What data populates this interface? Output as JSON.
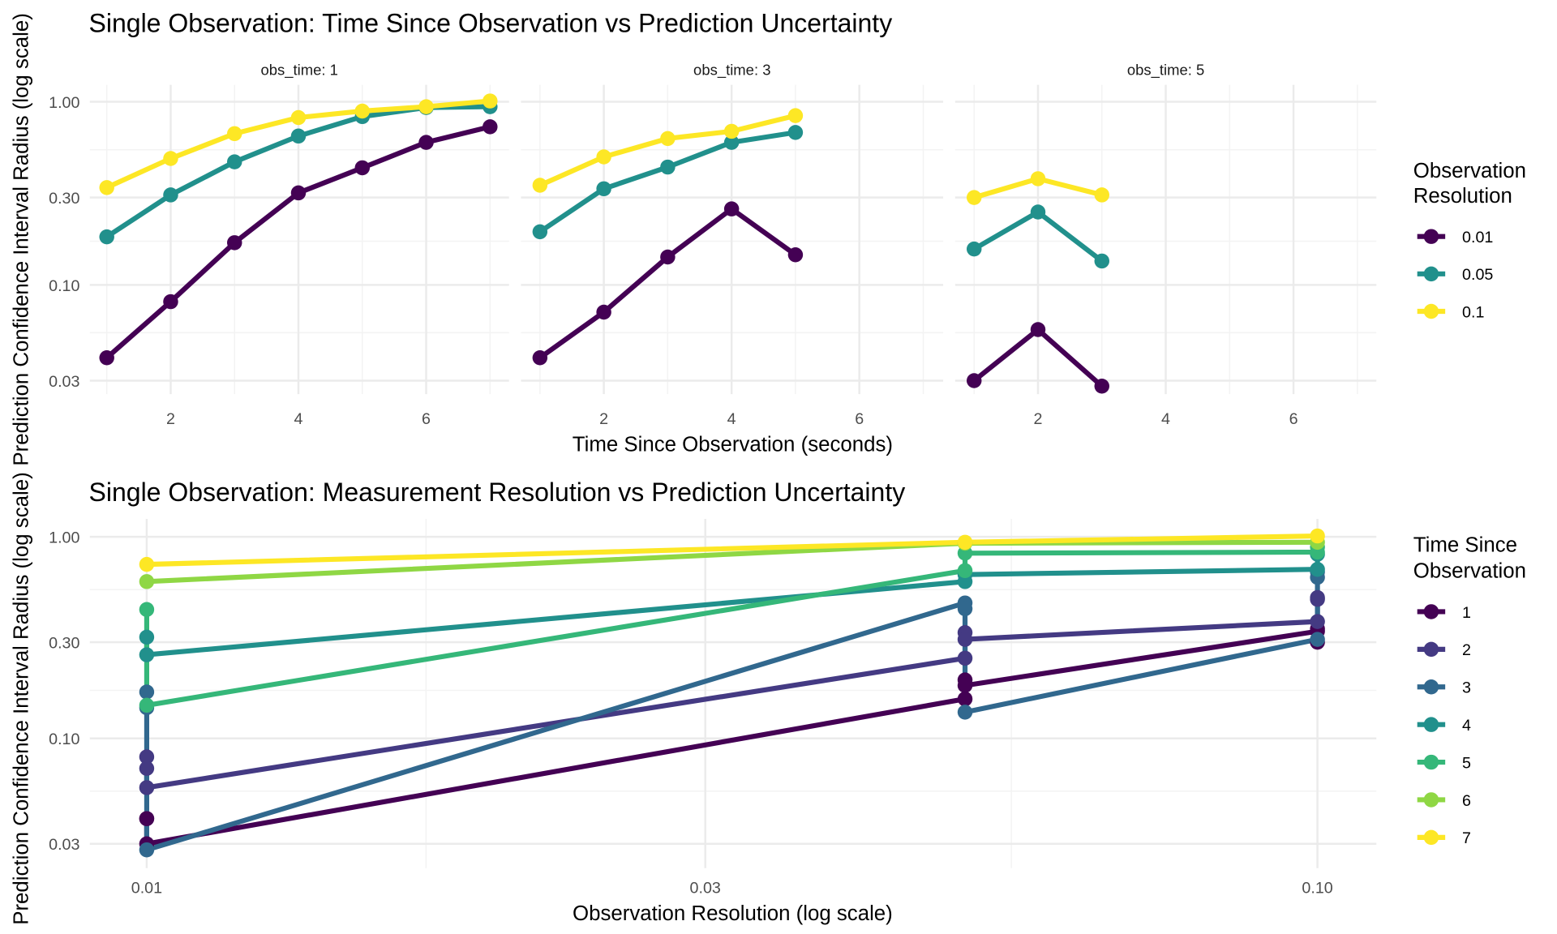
{
  "chart_data": [
    {
      "type": "line",
      "title": "Single Observation: Time Since Observation vs Prediction Uncertainty",
      "xlabel": "Time Since Observation (seconds)",
      "ylabel": "Prediction Confidence Interval Radius (log scale)",
      "y_scale": "log",
      "ylim": [
        0.025,
        1.05
      ],
      "xlim": [
        0.7,
        7.3
      ],
      "x_ticks": [
        "2",
        "4",
        "6"
      ],
      "y_ticks": [
        "0.03",
        "0.10",
        "0.30",
        "1.00"
      ],
      "grid": true,
      "legend": {
        "title_line1": "Observation",
        "title_line2": "Resolution",
        "position": "right"
      },
      "facets": [
        {
          "label": "obs_time: 1",
          "series": [
            {
              "name": "0.01",
              "color": "#440154",
              "x": [
                1,
                2,
                3,
                4,
                5,
                6,
                7
              ],
              "y": [
                0.04,
                0.081,
                0.17,
                0.318,
                0.436,
                0.6,
                0.73
              ]
            },
            {
              "name": "0.05",
              "color": "#21908C",
              "x": [
                1,
                2,
                3,
                4,
                5,
                6,
                7
              ],
              "y": [
                0.183,
                0.31,
                0.47,
                0.65,
                0.83,
                0.93,
                0.94
              ]
            },
            {
              "name": "0.1",
              "color": "#FDE725",
              "x": [
                1,
                2,
                3,
                4,
                5,
                6,
                7
              ],
              "y": [
                0.34,
                0.49,
                0.67,
                0.82,
                0.89,
                0.94,
                1.01
              ]
            }
          ]
        },
        {
          "label": "obs_time: 3",
          "series": [
            {
              "name": "0.01",
              "color": "#440154",
              "x": [
                1,
                2,
                3,
                4,
                5
              ],
              "y": [
                0.04,
                0.071,
                0.142,
                0.26,
                0.146
              ]
            },
            {
              "name": "0.05",
              "color": "#21908C",
              "x": [
                1,
                2,
                3,
                4,
                5
              ],
              "y": [
                0.195,
                0.335,
                0.44,
                0.6,
                0.68
              ]
            },
            {
              "name": "0.1",
              "color": "#FDE725",
              "x": [
                1,
                2,
                3,
                4,
                5
              ],
              "y": [
                0.35,
                0.5,
                0.63,
                0.69,
                0.84
              ]
            }
          ]
        },
        {
          "label": "obs_time: 5",
          "series": [
            {
              "name": "0.01",
              "color": "#440154",
              "x": [
                1,
                2,
                3
              ],
              "y": [
                0.03,
                0.057,
                0.028
              ]
            },
            {
              "name": "0.05",
              "color": "#21908C",
              "x": [
                1,
                2,
                3
              ],
              "y": [
                0.157,
                0.25,
                0.135
              ]
            },
            {
              "name": "0.1",
              "color": "#FDE725",
              "x": [
                1,
                2,
                3
              ],
              "y": [
                0.3,
                0.38,
                0.31
              ]
            }
          ]
        }
      ]
    },
    {
      "type": "line",
      "title": "Single Observation: Measurement Resolution vs Prediction Uncertainty",
      "xlabel": "Observation Resolution (log scale)",
      "ylabel": "Prediction Confidence Interval Radius (log scale)",
      "x_scale": "log",
      "y_scale": "log",
      "x_ticks": [
        "0.01",
        "0.03",
        "0.10"
      ],
      "y_ticks": [
        "0.03",
        "0.10",
        "0.30",
        "1.00"
      ],
      "grid": true,
      "legend": {
        "title_line1": "Time Since",
        "title_line2": "Observation",
        "position": "right"
      },
      "series": [
        {
          "name": "1",
          "color": "#440154",
          "points": [
            [
              0.01,
              0.04
            ],
            [
              0.01,
              0.04
            ],
            [
              0.01,
              0.03
            ],
            [
              0.05,
              0.157
            ],
            [
              0.05,
              0.195
            ],
            [
              0.05,
              0.183
            ],
            [
              0.1,
              0.34
            ],
            [
              0.1,
              0.35
            ],
            [
              0.1,
              0.3
            ]
          ]
        },
        {
          "name": "2",
          "color": "#443A83",
          "points": [
            [
              0.01,
              0.081
            ],
            [
              0.01,
              0.071
            ],
            [
              0.01,
              0.057
            ],
            [
              0.05,
              0.25
            ],
            [
              0.05,
              0.335
            ],
            [
              0.05,
              0.31
            ],
            [
              0.1,
              0.38
            ],
            [
              0.1,
              0.5
            ],
            [
              0.1,
              0.49
            ]
          ]
        },
        {
          "name": "3",
          "color": "#31688E",
          "points": [
            [
              0.01,
              0.17
            ],
            [
              0.01,
              0.142
            ],
            [
              0.01,
              0.028
            ],
            [
              0.05,
              0.47
            ],
            [
              0.05,
              0.44
            ],
            [
              0.05,
              0.135
            ],
            [
              0.1,
              0.31
            ],
            [
              0.1,
              0.63
            ],
            [
              0.1,
              0.67
            ]
          ]
        },
        {
          "name": "4",
          "color": "#21908C",
          "points": [
            [
              0.01,
              0.318
            ],
            [
              0.01,
              0.26
            ],
            [
              0.05,
              0.6
            ],
            [
              0.05,
              0.65
            ],
            [
              0.1,
              0.69
            ],
            [
              0.1,
              0.82
            ]
          ]
        },
        {
          "name": "5",
          "color": "#35B779",
          "points": [
            [
              0.01,
              0.436
            ],
            [
              0.01,
              0.146
            ],
            [
              0.05,
              0.68
            ],
            [
              0.05,
              0.83
            ],
            [
              0.1,
              0.84
            ],
            [
              0.1,
              0.89
            ]
          ]
        },
        {
          "name": "6",
          "color": "#8FD744",
          "points": [
            [
              0.01,
              0.6
            ],
            [
              0.05,
              0.93
            ],
            [
              0.1,
              0.94
            ]
          ]
        },
        {
          "name": "7",
          "color": "#FDE725",
          "points": [
            [
              0.01,
              0.73
            ],
            [
              0.05,
              0.94
            ],
            [
              0.1,
              1.01
            ]
          ]
        }
      ]
    }
  ]
}
